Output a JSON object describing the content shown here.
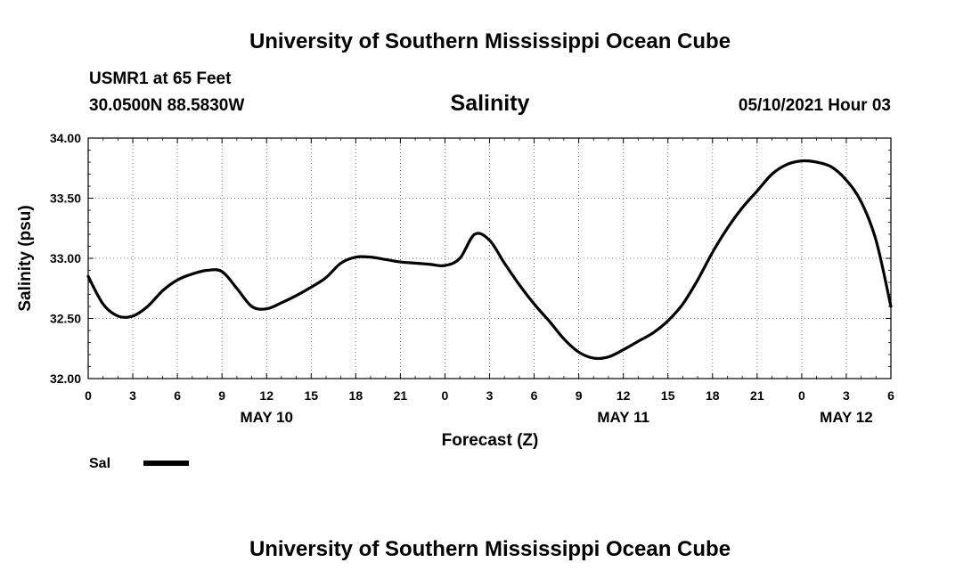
{
  "header": {
    "title_top": "University of Southern Mississippi Ocean Cube",
    "station": "USMR1 at 65 Feet",
    "coords": "30.0500N  88.5830W",
    "parameter": "Salinity",
    "datetime": "05/10/2021 Hour 03"
  },
  "footer": {
    "title_bottom": "University of Southern Mississippi Ocean Cube"
  },
  "legend": {
    "label": "Sal",
    "color": "#000000"
  },
  "chart_data": {
    "type": "line",
    "title": "Salinity",
    "xlabel": "Forecast (Z)",
    "ylabel": "Salinity (psu)",
    "xlim": [
      0,
      54
    ],
    "ylim": [
      32.0,
      34.0
    ],
    "yticks": [
      32.0,
      32.5,
      33.0,
      33.5,
      34.0
    ],
    "ytick_labels": [
      "32.00",
      "32.50",
      "33.00",
      "33.50",
      "34.00"
    ],
    "xticks": [
      0,
      3,
      6,
      9,
      12,
      15,
      18,
      21,
      24,
      27,
      30,
      33,
      36,
      39,
      42,
      45,
      48,
      51,
      54
    ],
    "xtick_labels": [
      "0",
      "3",
      "6",
      "9",
      "12",
      "15",
      "18",
      "21",
      "0",
      "3",
      "6",
      "9",
      "12",
      "15",
      "18",
      "21",
      "0",
      "3",
      "6"
    ],
    "date_labels": [
      {
        "x": 12,
        "label": "MAY 10"
      },
      {
        "x": 36,
        "label": "MAY 11"
      },
      {
        "x": 51,
        "label": "MAY 12"
      }
    ],
    "series": [
      {
        "name": "Sal",
        "color": "#000000",
        "x": [
          0,
          1,
          2,
          3,
          4,
          5,
          6,
          7,
          8,
          9,
          10,
          11,
          12,
          13,
          14,
          15,
          16,
          17,
          18,
          19,
          20,
          21,
          22,
          23,
          24,
          25,
          26,
          27,
          28,
          29,
          30,
          31,
          32,
          33,
          34,
          35,
          36,
          37,
          38,
          39,
          40,
          41,
          42,
          43,
          44,
          45,
          46,
          47,
          48,
          49,
          50,
          51,
          52,
          53,
          54
        ],
        "values": [
          32.85,
          32.62,
          32.52,
          32.52,
          32.6,
          32.73,
          32.82,
          32.87,
          32.9,
          32.89,
          32.75,
          32.6,
          32.58,
          32.63,
          32.69,
          32.76,
          32.84,
          32.96,
          33.01,
          33.01,
          32.99,
          32.97,
          32.96,
          32.95,
          32.94,
          33.0,
          33.2,
          33.15,
          32.96,
          32.78,
          32.62,
          32.48,
          32.33,
          32.22,
          32.17,
          32.18,
          32.24,
          32.31,
          32.38,
          32.48,
          32.62,
          32.82,
          33.05,
          33.25,
          33.42,
          33.56,
          33.7,
          33.78,
          33.81,
          33.8,
          33.76,
          33.65,
          33.47,
          33.15,
          32.6
        ]
      }
    ]
  }
}
